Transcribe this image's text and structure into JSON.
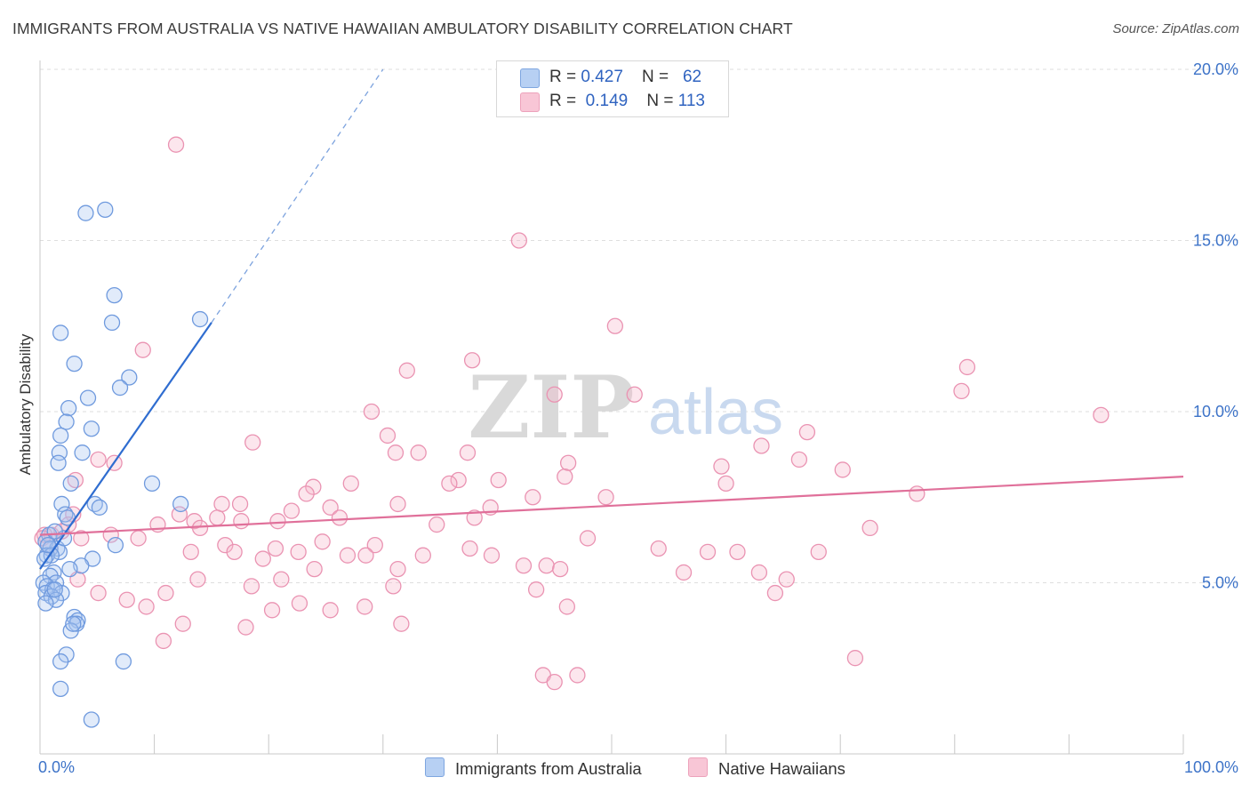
{
  "title": "IMMIGRANTS FROM AUSTRALIA VS NATIVE HAWAIIAN AMBULATORY DISABILITY CORRELATION CHART",
  "source": "Source: ZipAtlas.com",
  "watermark": {
    "zip": "ZIP",
    "atlas": "atlas"
  },
  "colors": {
    "blue": "#3d73d0",
    "blue_fill": "#a9c6f0",
    "pink": "#e0709a",
    "pink_fill": "#f5b6cc",
    "axis_text": "#3d73c8",
    "grid": "#dddddd"
  },
  "legend": {
    "rows": [
      {
        "r_label": "R = ",
        "r_value": "0.427",
        "n_label": "N = ",
        "n_value": "62",
        "series": "blue"
      },
      {
        "r_label": "R = ",
        "r_value": "0.149",
        "n_label": "N = ",
        "n_value": "113",
        "series": "pink"
      }
    ]
  },
  "bottom_legend": [
    {
      "label": "Immigrants from Australia",
      "series": "blue"
    },
    {
      "label": "Native Hawaiians",
      "series": "pink"
    }
  ],
  "chart_data": {
    "type": "scatter",
    "title": "IMMIGRANTS FROM AUSTRALIA VS NATIVE HAWAIIAN AMBULATORY DISABILITY CORRELATION CHART",
    "xlabel": "",
    "ylabel": "Ambulatory Disability",
    "xlim": [
      0,
      100
    ],
    "ylim": [
      0,
      20
    ],
    "x_tick_labels": [
      "0.0%",
      "100.0%"
    ],
    "y_ticks": [
      {
        "value": 5,
        "label": "5.0%"
      },
      {
        "value": 10,
        "label": "10.0%"
      },
      {
        "value": 15,
        "label": "15.0%"
      },
      {
        "value": 20,
        "label": "20.0%"
      }
    ],
    "grid": true,
    "series": [
      {
        "name": "Immigrants from Australia",
        "color": "#3d73d0",
        "r": 0.427,
        "n": 62,
        "trend": {
          "x0": 0,
          "y0": 5.4,
          "x1": 15,
          "y1": 12.6,
          "dashed_to_x": 30,
          "dashed_to_y": 20.0
        },
        "points": [
          [
            4.0,
            15.8
          ],
          [
            5.7,
            15.9
          ],
          [
            6.5,
            13.4
          ],
          [
            6.3,
            12.6
          ],
          [
            1.8,
            12.3
          ],
          [
            3.0,
            11.4
          ],
          [
            7.8,
            11.0
          ],
          [
            7.0,
            10.7
          ],
          [
            4.2,
            10.4
          ],
          [
            2.5,
            10.1
          ],
          [
            2.3,
            9.7
          ],
          [
            4.5,
            9.5
          ],
          [
            1.8,
            9.3
          ],
          [
            3.7,
            8.8
          ],
          [
            1.7,
            8.8
          ],
          [
            1.6,
            8.5
          ],
          [
            2.7,
            7.9
          ],
          [
            1.9,
            7.3
          ],
          [
            4.8,
            7.3
          ],
          [
            5.2,
            7.2
          ],
          [
            9.8,
            7.9
          ],
          [
            12.3,
            7.3
          ],
          [
            2.2,
            7.0
          ],
          [
            2.4,
            6.9
          ],
          [
            0.8,
            6.4
          ],
          [
            0.5,
            6.2
          ],
          [
            1.5,
            6.0
          ],
          [
            0.9,
            6.0
          ],
          [
            1.7,
            5.9
          ],
          [
            0.6,
            5.8
          ],
          [
            1.0,
            5.8
          ],
          [
            0.4,
            5.7
          ],
          [
            4.6,
            5.7
          ],
          [
            6.6,
            6.1
          ],
          [
            2.1,
            6.3
          ],
          [
            3.6,
            5.5
          ],
          [
            2.6,
            5.4
          ],
          [
            1.2,
            5.3
          ],
          [
            0.9,
            5.2
          ],
          [
            1.4,
            5.0
          ],
          [
            0.3,
            5.0
          ],
          [
            0.6,
            4.9
          ],
          [
            1.1,
            4.8
          ],
          [
            1.9,
            4.7
          ],
          [
            0.5,
            4.7
          ],
          [
            1.0,
            4.6
          ],
          [
            1.4,
            4.5
          ],
          [
            0.5,
            4.4
          ],
          [
            3.0,
            4.0
          ],
          [
            3.3,
            3.9
          ],
          [
            3.2,
            3.8
          ],
          [
            2.7,
            3.6
          ],
          [
            2.3,
            2.9
          ],
          [
            1.8,
            2.7
          ],
          [
            7.3,
            2.7
          ],
          [
            1.8,
            1.9
          ],
          [
            4.5,
            1.0
          ],
          [
            14.0,
            12.7
          ],
          [
            1.3,
            6.5
          ],
          [
            0.7,
            6.1
          ],
          [
            2.9,
            3.8
          ],
          [
            1.3,
            4.8
          ]
        ]
      },
      {
        "name": "Native Hawaiians",
        "color": "#e0709a",
        "r": 0.149,
        "n": 113,
        "trend": {
          "x0": 0,
          "y0": 6.4,
          "x1": 100,
          "y1": 8.1
        },
        "points": [
          [
            11.9,
            17.8
          ],
          [
            41.9,
            15.0
          ],
          [
            50.3,
            12.5
          ],
          [
            9.0,
            11.8
          ],
          [
            37.8,
            11.5
          ],
          [
            32.1,
            11.2
          ],
          [
            81.1,
            11.3
          ],
          [
            45.0,
            10.5
          ],
          [
            52.0,
            10.5
          ],
          [
            80.6,
            10.6
          ],
          [
            92.8,
            9.9
          ],
          [
            29.0,
            10.0
          ],
          [
            30.4,
            9.3
          ],
          [
            67.1,
            9.4
          ],
          [
            18.6,
            9.1
          ],
          [
            63.1,
            9.0
          ],
          [
            31.1,
            8.8
          ],
          [
            33.1,
            8.8
          ],
          [
            37.4,
            8.8
          ],
          [
            5.1,
            8.6
          ],
          [
            6.5,
            8.5
          ],
          [
            46.2,
            8.5
          ],
          [
            66.4,
            8.6
          ],
          [
            70.2,
            8.3
          ],
          [
            3.1,
            8.0
          ],
          [
            36.6,
            8.0
          ],
          [
            27.2,
            7.9
          ],
          [
            40.1,
            8.0
          ],
          [
            45.9,
            8.1
          ],
          [
            59.6,
            8.4
          ],
          [
            60.0,
            7.9
          ],
          [
            23.9,
            7.8
          ],
          [
            35.8,
            7.9
          ],
          [
            23.3,
            7.6
          ],
          [
            43.1,
            7.5
          ],
          [
            49.5,
            7.5
          ],
          [
            76.7,
            7.6
          ],
          [
            15.9,
            7.3
          ],
          [
            17.5,
            7.3
          ],
          [
            22.0,
            7.1
          ],
          [
            25.4,
            7.2
          ],
          [
            31.3,
            7.3
          ],
          [
            39.4,
            7.2
          ],
          [
            2.9,
            7.0
          ],
          [
            12.2,
            7.0
          ],
          [
            13.5,
            6.8
          ],
          [
            15.5,
            6.9
          ],
          [
            17.6,
            6.8
          ],
          [
            20.8,
            6.8
          ],
          [
            26.2,
            6.9
          ],
          [
            38.0,
            6.9
          ],
          [
            2.5,
            6.7
          ],
          [
            10.3,
            6.7
          ],
          [
            14.0,
            6.6
          ],
          [
            34.7,
            6.7
          ],
          [
            72.6,
            6.6
          ],
          [
            0.4,
            6.4
          ],
          [
            1.0,
            6.4
          ],
          [
            0.2,
            6.3
          ],
          [
            1.9,
            6.5
          ],
          [
            6.2,
            6.4
          ],
          [
            3.6,
            6.3
          ],
          [
            8.6,
            6.3
          ],
          [
            24.7,
            6.2
          ],
          [
            16.2,
            6.1
          ],
          [
            20.6,
            6.0
          ],
          [
            22.6,
            5.9
          ],
          [
            29.3,
            6.1
          ],
          [
            37.6,
            6.0
          ],
          [
            54.1,
            6.0
          ],
          [
            0.9,
            6.0
          ],
          [
            13.2,
            5.9
          ],
          [
            17.0,
            5.9
          ],
          [
            26.9,
            5.8
          ],
          [
            28.5,
            5.8
          ],
          [
            33.5,
            5.8
          ],
          [
            47.9,
            6.3
          ],
          [
            58.4,
            5.9
          ],
          [
            61.0,
            5.9
          ],
          [
            68.1,
            5.9
          ],
          [
            19.5,
            5.7
          ],
          [
            24.0,
            5.4
          ],
          [
            31.3,
            5.4
          ],
          [
            42.3,
            5.5
          ],
          [
            44.3,
            5.5
          ],
          [
            39.5,
            5.8
          ],
          [
            45.5,
            5.4
          ],
          [
            56.3,
            5.3
          ],
          [
            62.9,
            5.3
          ],
          [
            65.3,
            5.1
          ],
          [
            3.3,
            5.1
          ],
          [
            13.8,
            5.1
          ],
          [
            18.5,
            4.9
          ],
          [
            21.1,
            5.1
          ],
          [
            30.9,
            4.9
          ],
          [
            43.4,
            4.8
          ],
          [
            64.3,
            4.7
          ],
          [
            5.1,
            4.7
          ],
          [
            11.0,
            4.7
          ],
          [
            22.7,
            4.4
          ],
          [
            28.4,
            4.3
          ],
          [
            9.3,
            4.3
          ],
          [
            20.3,
            4.2
          ],
          [
            25.4,
            4.2
          ],
          [
            46.1,
            4.3
          ],
          [
            7.6,
            4.5
          ],
          [
            12.5,
            3.8
          ],
          [
            10.8,
            3.3
          ],
          [
            18.0,
            3.7
          ],
          [
            31.6,
            3.8
          ],
          [
            71.3,
            2.8
          ],
          [
            44.0,
            2.3
          ],
          [
            45.0,
            2.1
          ],
          [
            47.0,
            2.3
          ]
        ]
      }
    ]
  }
}
